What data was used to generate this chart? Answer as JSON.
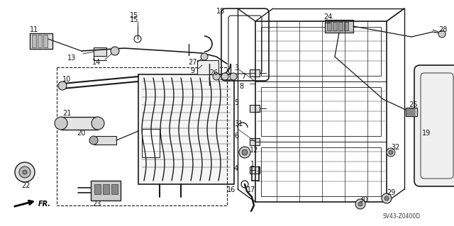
{
  "background_color": "#ffffff",
  "diagram_code": "SV43-Z0400D",
  "fig_width": 6.4,
  "fig_height": 3.19,
  "dpi": 100,
  "line_color": "#1a1a1a",
  "text_color": "#111111",
  "label_fontsize": 7.0
}
